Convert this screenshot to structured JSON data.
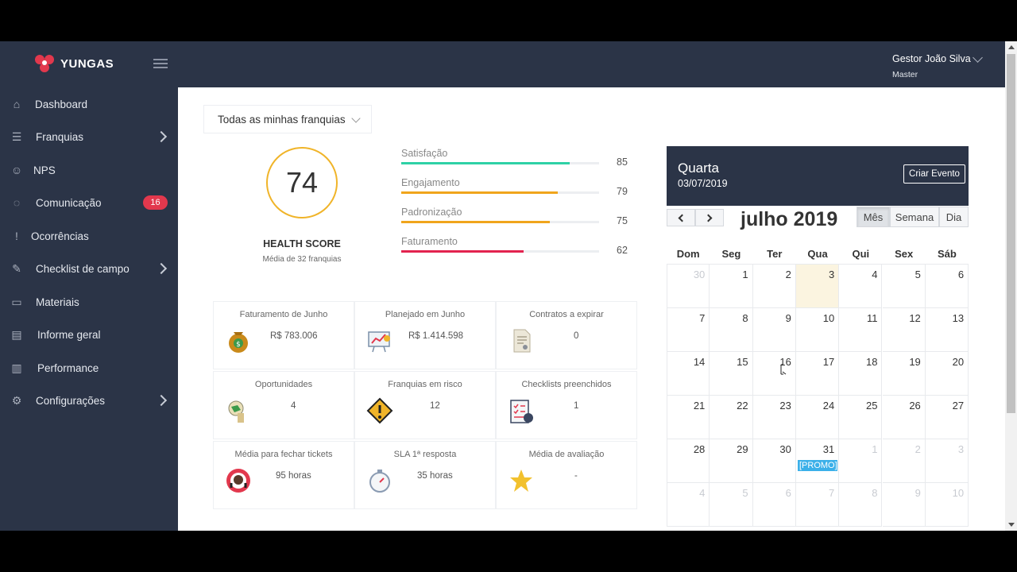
{
  "brand": {
    "name": "YUNGAS"
  },
  "sidebar": {
    "items": [
      {
        "label": "Dashboard",
        "icon": "home-icon"
      },
      {
        "label": "Franquias",
        "icon": "list-icon",
        "has_submenu": true
      },
      {
        "label": "NPS",
        "icon": "smile-icon"
      },
      {
        "label": "Comunicação",
        "icon": "chat-icon",
        "badge": "16"
      },
      {
        "label": "Ocorrências",
        "icon": "exclamation-icon"
      },
      {
        "label": "Checklist de campo",
        "icon": "edit-icon",
        "has_submenu": true
      },
      {
        "label": "Materiais",
        "icon": "folder-icon"
      },
      {
        "label": "Informe geral",
        "icon": "newspaper-icon"
      },
      {
        "label": "Performance",
        "icon": "bar-chart-icon"
      },
      {
        "label": "Configurações",
        "icon": "gear-icon",
        "has_submenu": true
      }
    ]
  },
  "user": {
    "name": "Gestor João Silva",
    "role": "Master"
  },
  "filter": {
    "selected": "Todas as minhas franquias"
  },
  "health": {
    "score": "74",
    "title": "HEALTH SCORE",
    "subtitle": "Média de 32 franquias"
  },
  "metrics": [
    {
      "label": "Satisfação",
      "value": "85",
      "fraction": 0.85,
      "color": "#2ed1a6"
    },
    {
      "label": "Engajamento",
      "value": "79",
      "fraction": 0.79,
      "color": "#f0a51c"
    },
    {
      "label": "Padronização",
      "value": "75",
      "fraction": 0.75,
      "color": "#f0a51c"
    },
    {
      "label": "Faturamento",
      "value": "62",
      "fraction": 0.62,
      "color": "#e2234f"
    }
  ],
  "cards": [
    {
      "title": "Faturamento de Junho",
      "value": "R$ 783.006",
      "icon": "money-bag-icon"
    },
    {
      "title": "Planejado em Junho",
      "value": "R$ 1.414.598",
      "icon": "presentation-icon"
    },
    {
      "title": "Contratos a expirar",
      "value": "0",
      "icon": "contract-icon"
    },
    {
      "title": "Oportunidades",
      "value": "4",
      "icon": "opportunity-icon"
    },
    {
      "title": "Franquias em risco",
      "value": "12",
      "icon": "warning-icon"
    },
    {
      "title": "Checklists preenchidos",
      "value": "1",
      "icon": "checklist-icon"
    },
    {
      "title": "Média para fechar tickets",
      "value": "95 horas",
      "icon": "headset-icon"
    },
    {
      "title": "SLA 1ª resposta",
      "value": "35 horas",
      "icon": "stopwatch-icon"
    },
    {
      "title": "Média de avaliação",
      "value": "-",
      "icon": "star-icon"
    }
  ],
  "calendar": {
    "weekday": "Quarta",
    "date": "03/07/2019",
    "create_label": "Criar Evento",
    "title": "julho 2019",
    "views": [
      "Mês",
      "Semana",
      "Dia"
    ],
    "active_view": "Mês",
    "day_headers": [
      "Dom",
      "Seg",
      "Ter",
      "Qua",
      "Qui",
      "Sex",
      "Sáb"
    ],
    "weeks": [
      [
        [
          "30",
          true
        ],
        [
          "1",
          false
        ],
        [
          "2",
          false
        ],
        [
          "3",
          false
        ],
        [
          "4",
          false
        ],
        [
          "5",
          false
        ],
        [
          "6",
          false
        ]
      ],
      [
        [
          "7",
          false
        ],
        [
          "8",
          false
        ],
        [
          "9",
          false
        ],
        [
          "10",
          false
        ],
        [
          "11",
          false
        ],
        [
          "12",
          false
        ],
        [
          "13",
          false
        ]
      ],
      [
        [
          "14",
          false
        ],
        [
          "15",
          false
        ],
        [
          "16",
          false
        ],
        [
          "17",
          false
        ],
        [
          "18",
          false
        ],
        [
          "19",
          false
        ],
        [
          "20",
          false
        ]
      ],
      [
        [
          "21",
          false
        ],
        [
          "22",
          false
        ],
        [
          "23",
          false
        ],
        [
          "24",
          false
        ],
        [
          "25",
          false
        ],
        [
          "26",
          false
        ],
        [
          "27",
          false
        ]
      ],
      [
        [
          "28",
          false
        ],
        [
          "29",
          false
        ],
        [
          "30",
          false
        ],
        [
          "31",
          false
        ],
        [
          "1",
          true
        ],
        [
          "2",
          true
        ],
        [
          "3",
          true
        ]
      ],
      [
        [
          "4",
          true
        ],
        [
          "5",
          true
        ],
        [
          "6",
          true
        ],
        [
          "7",
          true
        ],
        [
          "8",
          true
        ],
        [
          "9",
          true
        ],
        [
          "10",
          true
        ]
      ]
    ],
    "today": "3",
    "event_label": "[PROMO]"
  }
}
